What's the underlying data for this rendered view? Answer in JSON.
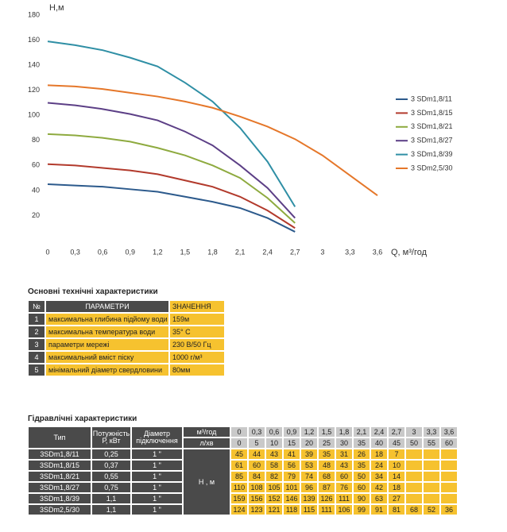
{
  "chart_data": {
    "type": "line",
    "y_label": "H,м",
    "x_label": "Q, м³/год",
    "x": [
      0,
      0.3,
      0.6,
      0.9,
      1.2,
      1.5,
      1.8,
      2.1,
      2.4,
      2.7,
      3,
      3.3,
      3.6
    ],
    "xlim": [
      0,
      3.6
    ],
    "xticks": [
      0,
      {
        "value": 0.3,
        "label": "0,3"
      },
      {
        "value": 0.6,
        "label": "0,6"
      },
      {
        "value": 0.9,
        "label": "0,9"
      },
      {
        "value": 1.2,
        "label": "1,2"
      },
      {
        "value": 1.5,
        "label": "1,5"
      },
      {
        "value": 1.8,
        "label": "1,8"
      },
      {
        "value": 2.1,
        "label": "2,1"
      },
      {
        "value": 2.4,
        "label": "2,4"
      },
      {
        "value": 2.7,
        "label": "2,7"
      },
      3,
      {
        "value": 3.3,
        "label": "3,3"
      },
      {
        "value": 3.6,
        "label": "3,6"
      }
    ],
    "ylim": [
      0,
      180
    ],
    "yticks": [
      20,
      40,
      60,
      80,
      100,
      120,
      140,
      160,
      180
    ],
    "grid": false,
    "series": [
      {
        "name": "3 SDm1,8/11",
        "color": "#2c5a8c",
        "values": [
          45,
          44,
          43,
          41,
          39,
          35,
          31,
          26,
          18,
          7,
          null,
          null,
          null
        ]
      },
      {
        "name": "3 SDm1,8/15",
        "color": "#b23a2c",
        "values": [
          61,
          60,
          58,
          56,
          53,
          48,
          43,
          35,
          24,
          10,
          null,
          null,
          null
        ]
      },
      {
        "name": "3 SDm1,8/21",
        "color": "#8eaa3f",
        "values": [
          85,
          84,
          82,
          79,
          74,
          68,
          60,
          50,
          34,
          14,
          null,
          null,
          null
        ]
      },
      {
        "name": "3 SDm1,8/27",
        "color": "#5c3f86",
        "values": [
          110,
          108,
          105,
          101,
          96,
          87,
          76,
          60,
          42,
          18,
          null,
          null,
          null
        ]
      },
      {
        "name": "3 SDm1,8/39",
        "color": "#2f8fa5",
        "values": [
          159,
          156,
          152,
          146,
          139,
          126,
          111,
          90,
          63,
          27,
          null,
          null,
          null
        ]
      },
      {
        "name": "3 SDm2,5/30",
        "color": "#e5772a",
        "values": [
          124,
          123,
          121,
          118,
          115,
          111,
          106,
          99,
          91,
          81,
          68,
          52,
          36
        ]
      }
    ]
  },
  "tech_table": {
    "title": "Основні технічні характеристики",
    "header": [
      "№",
      "ПАРАМЕТРИ",
      "ЗНАЧЕННЯ"
    ],
    "rows": [
      [
        "1",
        "максимальна глибина підйому води",
        "159м"
      ],
      [
        "2",
        "максимальна температура води",
        "35° С"
      ],
      [
        "3",
        "параметри мережі",
        "230 В/50 Гц"
      ],
      [
        "4",
        "максимальний вміст піску",
        "1000 г/м³"
      ],
      [
        "5",
        "мінімальний діаметр свердловини",
        "80мм"
      ]
    ]
  },
  "hydraulic_table": {
    "title": "Гідравлічні характеристики",
    "header": [
      "Тип",
      "Потужність Р, кВт",
      "Діаметр підключення"
    ],
    "q_label": "м³/год",
    "q": [
      "0",
      "0,3",
      "0,6",
      "0,9",
      "1,2",
      "1,5",
      "1,8",
      "2,1",
      "2,4",
      "2,7",
      "3",
      "3,3",
      "3,6"
    ],
    "l_label": "л/хв",
    "l": [
      "0",
      "5",
      "10",
      "15",
      "20",
      "25",
      "30",
      "35",
      "40",
      "45",
      "50",
      "55",
      "60"
    ],
    "h_label": "Н , м",
    "rows": [
      {
        "type": "3SDm1,8/11",
        "power": "0,25",
        "diameter": "1 \"",
        "h": [
          "45",
          "44",
          "43",
          "41",
          "39",
          "35",
          "31",
          "26",
          "18",
          "7"
        ]
      },
      {
        "type": "3SDm1,8/15",
        "power": "0,37",
        "diameter": "1 \"",
        "h": [
          "61",
          "60",
          "58",
          "56",
          "53",
          "48",
          "43",
          "35",
          "24",
          "10"
        ]
      },
      {
        "type": "3SDm1,8/21",
        "power": "0,55",
        "diameter": "1 \"",
        "h": [
          "85",
          "84",
          "82",
          "79",
          "74",
          "68",
          "60",
          "50",
          "34",
          "14"
        ]
      },
      {
        "type": "3SDm1,8/27",
        "power": "0,75",
        "diameter": "1 \"",
        "h": [
          "110",
          "108",
          "105",
          "101",
          "96",
          "87",
          "76",
          "60",
          "42",
          "18"
        ]
      },
      {
        "type": "3SDm1,8/39",
        "power": "1,1",
        "diameter": "1 \"",
        "h": [
          "159",
          "156",
          "152",
          "146",
          "139",
          "126",
          "111",
          "90",
          "63",
          "27"
        ]
      },
      {
        "type": "3SDm2,5/30",
        "power": "1,1",
        "diameter": "1 \"",
        "h": [
          "124",
          "123",
          "121",
          "118",
          "115",
          "111",
          "106",
          "99",
          "91",
          "81",
          "68",
          "52",
          "36"
        ]
      }
    ]
  }
}
